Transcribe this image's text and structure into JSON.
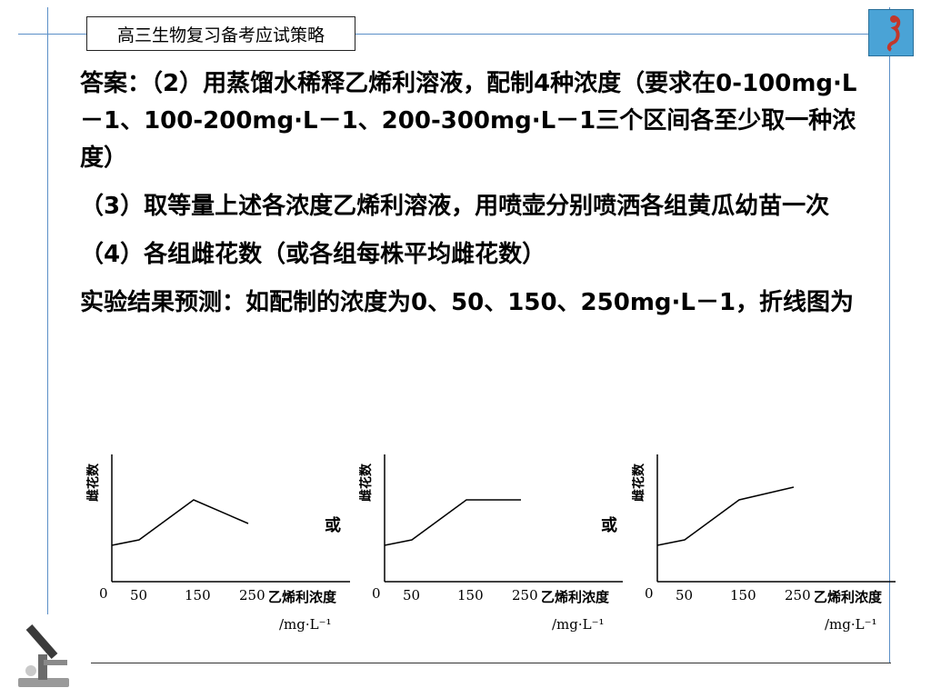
{
  "header": {
    "title": "高三生物复习备考应试策略"
  },
  "answer": {
    "p1": "答案：（2）用蒸馏水稀释乙烯利溶液，配制4种浓度（要求在0-100mg·L－1、100-200mg·L－1、200-300mg·L－1三个区间各至少取一种浓度）",
    "p2": "（3）取等量上述各浓度乙烯利溶液，用喷壶分别喷洒各组黄瓜幼苗一次",
    "p3": "（4）各组雌花数（或各组每株平均雌花数）",
    "p4": "实验结果预测：如配制的浓度为0、50、150、250mg·L－1，折线图为"
  },
  "or_label": "或",
  "chart_data": [
    {
      "type": "line",
      "ylabel": "雌花数",
      "xlabel": "乙烯利浓度",
      "xunit": "/mg·L⁻¹",
      "origin_label": "0",
      "x_ticks": [
        "50",
        "150",
        "250"
      ],
      "x": [
        0,
        50,
        150,
        250
      ],
      "y": [
        2.0,
        2.3,
        4.5,
        3.2
      ]
    },
    {
      "type": "line",
      "ylabel": "雌花数",
      "xlabel": "乙烯利浓度",
      "xunit": "/mg·L⁻¹",
      "origin_label": "0",
      "x_ticks": [
        "50",
        "150",
        "250"
      ],
      "x": [
        0,
        50,
        150,
        250
      ],
      "y": [
        2.0,
        2.3,
        4.5,
        4.5
      ]
    },
    {
      "type": "line",
      "ylabel": "雌花数",
      "xlabel": "乙烯利浓度",
      "xunit": "/mg·L⁻¹",
      "origin_label": "0",
      "x_ticks": [
        "50",
        "150",
        "250"
      ],
      "x": [
        0,
        50,
        150,
        250
      ],
      "y": [
        2.0,
        2.3,
        4.5,
        5.2
      ]
    }
  ]
}
